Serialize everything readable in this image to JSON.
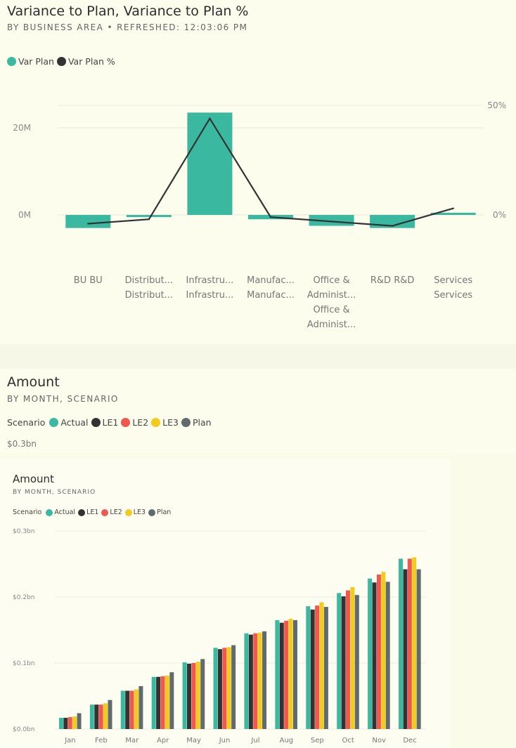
{
  "top_chart": {
    "title": "Variance to Plan, Variance to Plan %",
    "subtitle": "BY BUSINESS AREA  •  REFRESHED: 12:03:06 PM",
    "legend": [
      {
        "label": "Var Plan",
        "color": "#3bb9a0"
      },
      {
        "label": "Var Plan %",
        "color": "#333333"
      }
    ]
  },
  "mid_chart": {
    "title": "Amount",
    "subtitle": "BY MONTH, SCENARIO",
    "legend_title": "Scenario",
    "legend": [
      {
        "label": "Actual",
        "color": "#3bb9a0"
      },
      {
        "label": "LE1",
        "color": "#333333"
      },
      {
        "label": "LE2",
        "color": "#f0574f"
      },
      {
        "label": "LE3",
        "color": "#f3cb1c"
      },
      {
        "label": "Plan",
        "color": "#5f6b6d"
      }
    ],
    "axis_top": "$0.3bn"
  },
  "bottom_chart": {
    "title": "Amount",
    "subtitle": "BY MONTH, SCENARIO",
    "legend_title": "Scenario",
    "legend": [
      {
        "label": "Actual",
        "color": "#3bb9a0"
      },
      {
        "label": "LE1",
        "color": "#333333"
      },
      {
        "label": "LE2",
        "color": "#f0574f"
      },
      {
        "label": "LE3",
        "color": "#f3cb1c"
      },
      {
        "label": "Plan",
        "color": "#5f6b6d"
      }
    ]
  },
  "chart_data": [
    {
      "type": "bar",
      "title": "Variance to Plan, Variance to Plan %",
      "categories": [
        [
          "BU BU"
        ],
        [
          "Distribut...",
          "Distribut..."
        ],
        [
          "Infrastru...",
          "Infrastru..."
        ],
        [
          "Manufac...",
          "Manufac..."
        ],
        [
          "Office &",
          "Administ...",
          "Office &",
          "Administ..."
        ],
        [
          "R&D R&D"
        ],
        [
          "Services",
          "Services"
        ]
      ],
      "series": [
        {
          "name": "Var Plan",
          "type": "bar",
          "axis": "left",
          "color": "#3bb9a0",
          "values": [
            -3.0,
            -0.5,
            23.5,
            -1.0,
            -2.5,
            -3.0,
            0.5
          ]
        },
        {
          "name": "Var Plan %",
          "type": "line",
          "axis": "right",
          "color": "#333333",
          "values": [
            -4,
            -2,
            44,
            -1,
            -3,
            -5,
            3
          ]
        }
      ],
      "y_left": {
        "ticks": [
          "0M",
          "20M"
        ],
        "tick_values": [
          0,
          20
        ],
        "range": [
          -6,
          25
        ]
      },
      "y_right": {
        "ticks": [
          "0%",
          "50%"
        ],
        "tick_values": [
          0,
          50
        ],
        "range": [
          -10.8,
          54
        ]
      },
      "grid": true
    },
    {
      "type": "bar",
      "title": "Amount",
      "categories": [
        "Jan",
        "Feb",
        "Mar",
        "Apr",
        "May",
        "Jun",
        "Jul",
        "Aug",
        "Sep",
        "Oct",
        "Nov",
        "Dec"
      ],
      "series": [
        {
          "name": "Actual",
          "color": "#3bb9a0",
          "values": [
            0.017,
            0.037,
            0.058,
            0.079,
            0.101,
            0.123,
            0.145,
            0.165,
            0.186,
            0.206,
            0.228,
            0.258
          ]
        },
        {
          "name": "LE1",
          "color": "#333333",
          "values": [
            0.017,
            0.037,
            0.058,
            0.079,
            0.099,
            0.121,
            0.143,
            0.161,
            0.181,
            0.201,
            0.222,
            0.242
          ]
        },
        {
          "name": "LE2",
          "color": "#f0574f",
          "values": [
            0.018,
            0.037,
            0.058,
            0.08,
            0.1,
            0.123,
            0.145,
            0.164,
            0.187,
            0.21,
            0.234,
            0.258
          ]
        },
        {
          "name": "LE3",
          "color": "#f3cb1c",
          "values": [
            0.019,
            0.039,
            0.06,
            0.081,
            0.102,
            0.124,
            0.146,
            0.167,
            0.192,
            0.215,
            0.238,
            0.26
          ]
        },
        {
          "name": "Plan",
          "color": "#5f6b6d",
          "values": [
            0.024,
            0.044,
            0.065,
            0.086,
            0.106,
            0.127,
            0.148,
            0.165,
            0.185,
            0.203,
            0.223,
            0.242
          ]
        }
      ],
      "y_ticks": [
        "$0.0bn",
        "$0.1bn",
        "$0.2bn",
        "$0.3bn"
      ],
      "y_tick_values": [
        0,
        0.1,
        0.2,
        0.3
      ],
      "ylim": [
        0,
        0.3
      ],
      "grid": true
    }
  ]
}
